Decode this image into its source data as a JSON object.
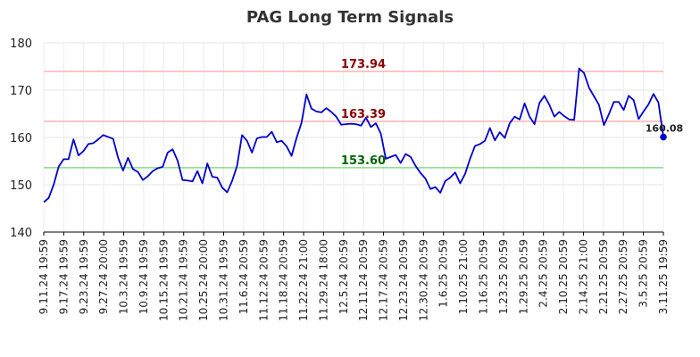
{
  "chart_data": {
    "type": "line",
    "title": "PAG Long Term Signals",
    "xlabel": "",
    "ylabel": "",
    "ylim": [
      140,
      180
    ],
    "yticks": [
      140,
      150,
      160,
      170,
      180
    ],
    "grid": true,
    "x_tick_labels": [
      "9.11.24 19:59",
      "9.17.24 19:59",
      "9.23.24 19:59",
      "9.27.24 20:00",
      "10.3.24 19:59",
      "10.9.24 19:59",
      "10.15.24 19:59",
      "10.21.24 19:59",
      "10.25.24 20:00",
      "10.31.24 19:59",
      "11.6.24 20:59",
      "11.12.24 20:59",
      "11.18.24 20:59",
      "11.22.24 21:00",
      "11.29.24 18:00",
      "12.5.24 20:59",
      "12.11.24 20:59",
      "12.17.24 20:59",
      "12.23.24 20:59",
      "12.30.24 20:59",
      "1.6.25 20:59",
      "1.10.25 21:00",
      "1.16.25 20:59",
      "1.23.25 20:59",
      "1.29.25 20:59",
      "2.4.25 20:59",
      "2.10.25 20:59",
      "2.14.25 21:00",
      "2.21.25 20:59",
      "2.27.25 20:59",
      "3.5.25 20:59",
      "3.11.25 19:59"
    ],
    "series": [
      {
        "color": "#0000cc",
        "values": [
          146.3,
          147.2,
          150.0,
          153.8,
          155.4,
          155.4,
          159.6,
          156.2,
          157.1,
          158.6,
          158.8,
          159.6,
          160.5,
          160.1,
          159.7,
          155.7,
          153.0,
          155.7,
          153.3,
          152.7,
          151.0,
          151.8,
          152.9,
          153.5,
          153.8,
          156.8,
          157.5,
          155.1,
          151.0,
          150.9,
          150.7,
          152.9,
          150.3,
          154.5,
          151.7,
          151.5,
          149.4,
          148.4,
          150.8,
          154.0,
          160.5,
          159.3,
          156.8,
          159.8,
          160.1,
          160.1,
          161.2,
          159.0,
          159.3,
          158.1,
          156.1,
          159.9,
          163.1,
          169.1,
          166.1,
          165.5,
          165.3,
          166.2,
          165.4,
          164.4,
          162.7,
          162.8,
          162.9,
          162.8,
          162.5,
          164.2,
          162.2,
          163.0,
          160.8,
          155.5,
          155.9,
          156.3,
          154.6,
          156.5,
          155.9,
          154.0,
          152.5,
          151.3,
          149.1,
          149.5,
          148.3,
          150.8,
          151.5,
          152.6,
          150.3,
          152.3,
          155.5,
          158.2,
          158.6,
          159.3,
          162.0,
          159.4,
          161.1,
          159.9,
          163.0,
          164.4,
          163.8,
          167.2,
          164.4,
          162.8,
          167.3,
          168.8,
          166.9,
          164.4,
          165.4,
          164.5,
          163.8,
          163.7,
          174.6,
          173.6,
          170.5,
          168.7,
          166.9,
          162.6,
          164.9,
          167.5,
          167.5,
          165.8,
          168.8,
          167.9,
          163.9,
          165.5,
          167.0,
          169.2,
          167.4,
          160.1
        ]
      }
    ],
    "hlines": [
      {
        "value": 173.94,
        "label": "173.94",
        "line_color": "#ffb3b3",
        "text_color": "#8b0000"
      },
      {
        "value": 163.39,
        "label": "163.39",
        "line_color": "#ffb3b3",
        "text_color": "#8b0000"
      },
      {
        "value": 153.6,
        "label": "153.60",
        "line_color": "#88dd88",
        "text_color": "#006400"
      }
    ],
    "last_point": {
      "value": 160.08,
      "label": "160.08"
    }
  }
}
